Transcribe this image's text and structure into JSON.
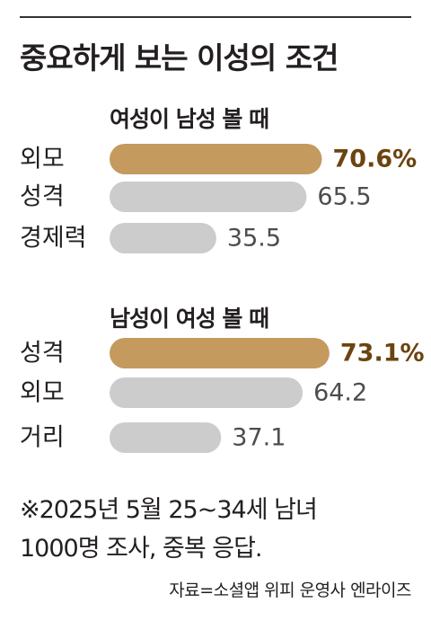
{
  "title": "중요하게 보는 이성의 조건",
  "chart_data": [
    {
      "type": "bar",
      "orientation": "horizontal",
      "title": "여성이 남성 볼 때",
      "categories": [
        "외모",
        "성격",
        "경제력"
      ],
      "values": [
        70.6,
        65.5,
        35.5
      ],
      "value_labels": [
        "70.6%",
        "65.5",
        "35.5"
      ],
      "highlight_index": 0,
      "xlim": [
        0,
        100
      ],
      "grid": false
    },
    {
      "type": "bar",
      "orientation": "horizontal",
      "title": "남성이 여성 볼 때",
      "categories": [
        "성격",
        "외모",
        "거리"
      ],
      "values": [
        73.1,
        64.2,
        37.1
      ],
      "value_labels": [
        "73.1%",
        "64.2",
        "37.1"
      ],
      "highlight_index": 0,
      "xlim": [
        0,
        100
      ],
      "grid": false
    }
  ],
  "colors": {
    "highlight_bar": "#c49a5e",
    "highlight_text": "#6b4410",
    "default_bar": "#cccccc",
    "default_text": "#4d4d4d",
    "label_text": "#231f20"
  },
  "note": {
    "line1": "※2025년 5월 25~34세 남녀",
    "line2": "1000명 조사, 중복 응답."
  },
  "source": "자료=소셜앱 위피 운영사 엔라이즈"
}
